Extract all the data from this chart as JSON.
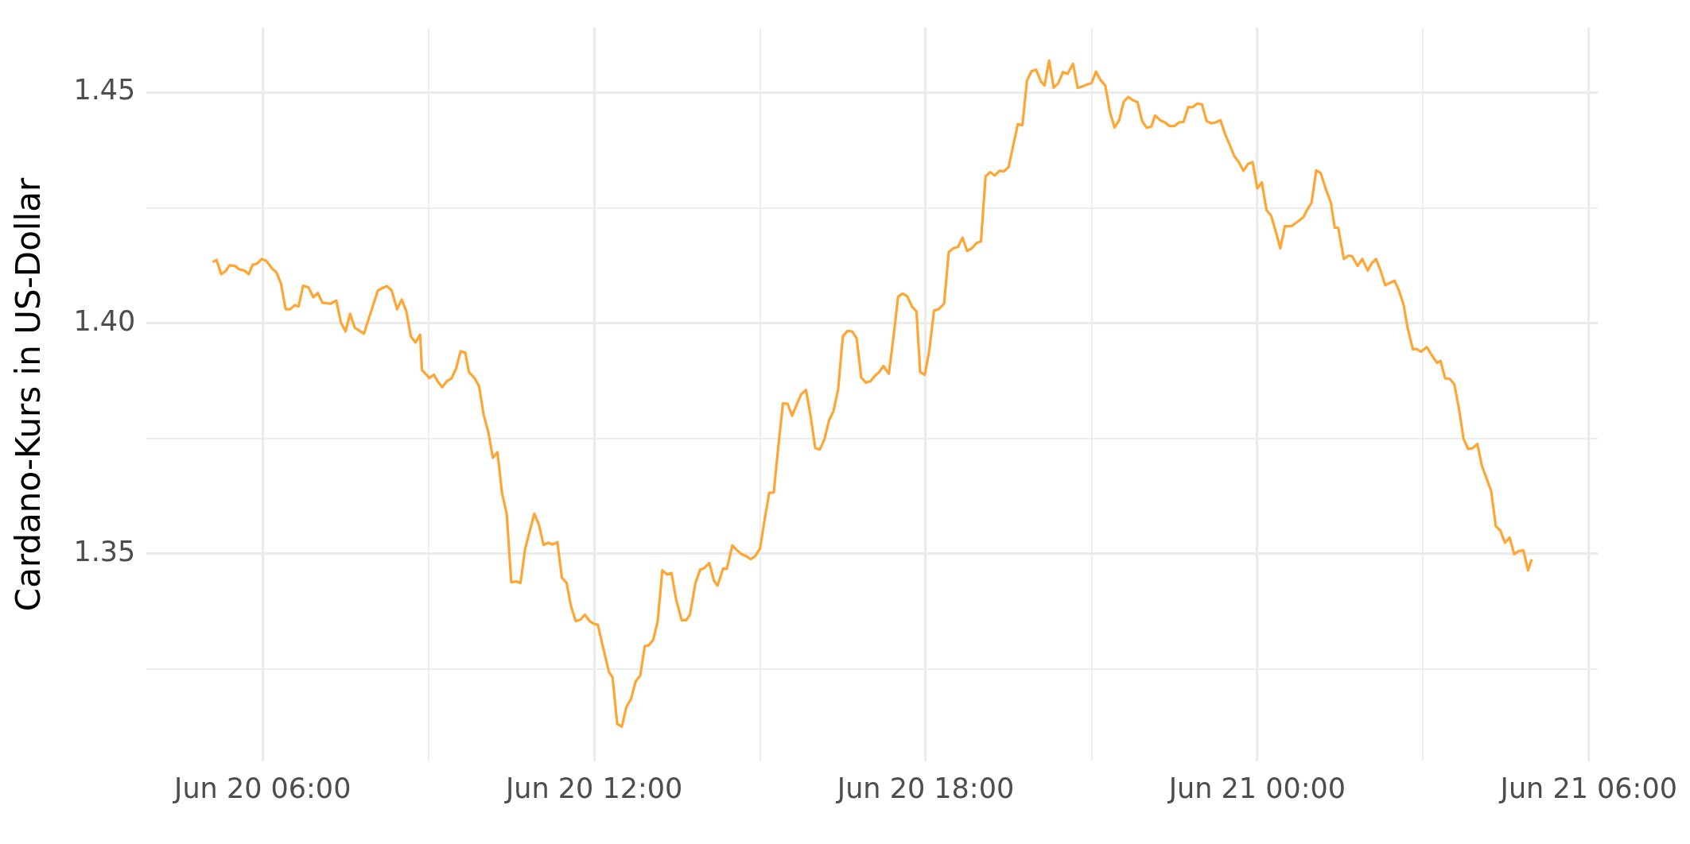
{
  "chart_data": {
    "type": "line",
    "ylabel": "Cardano-Kurs in US-Dollar",
    "color": "#ffa533",
    "x": [
      "--06-20T05:06",
      "--06-20T05:10",
      "--06-20T05:15",
      "--06-20T05:20",
      "--06-20T05:24",
      "--06-20T05:30",
      "--06-20T05:34",
      "--06-20T05:40",
      "--06-20T05:45",
      "--06-20T05:49",
      "--06-20T05:54",
      "--06-20T05:59",
      "--06-20T06:04",
      "--06-20T06:10",
      "--06-20T06:15",
      "--06-20T06:20",
      "--06-20T06:25",
      "--06-20T06:30",
      "--06-20T06:35",
      "--06-20T06:39",
      "--06-20T06:44",
      "--06-20T06:50",
      "--06-20T06:55",
      "--06-20T07:00",
      "--06-20T07:05",
      "--06-20T07:14",
      "--06-20T07:20",
      "--06-20T07:25",
      "--06-20T07:30",
      "--06-20T07:35",
      "--06-20T07:40",
      "--06-20T07:50",
      "--06-20T07:55",
      "--06-20T08:05",
      "--06-20T08:10",
      "--06-20T08:15",
      "--06-20T08:20",
      "--06-20T08:26",
      "--06-20T08:31",
      "--06-20T08:36",
      "--06-20T08:41",
      "--06-20T08:46",
      "--06-20T08:51",
      "--06-20T08:53",
      "--06-20T08:58",
      "--06-20T09:01",
      "--06-20T09:06",
      "--06-20T09:10",
      "--06-20T09:15",
      "--06-20T09:20",
      "--06-20T09:25",
      "--06-20T09:30",
      "--06-20T09:35",
      "--06-20T09:40",
      "--06-20T09:44",
      "--06-20T09:50",
      "--06-20T09:55",
      "--06-20T10:00",
      "--06-20T10:05",
      "--06-20T10:10",
      "--06-20T10:15",
      "--06-20T10:20",
      "--06-20T10:25",
      "--06-20T10:30",
      "--06-20T10:35",
      "--06-20T10:40",
      "--06-20T10:45",
      "--06-20T10:50",
      "--06-20T10:55",
      "--06-20T11:00",
      "--06-20T11:05",
      "--06-20T11:10",
      "--06-20T11:15",
      "--06-20T11:20",
      "--06-20T11:25",
      "--06-20T11:30",
      "--06-20T11:35",
      "--06-20T11:40",
      "--06-20T11:45",
      "--06-20T11:50",
      "--06-20T11:55",
      "--06-20T12:00",
      "--06-20T12:04",
      "--06-20T12:10",
      "--06-20T12:16",
      "--06-20T12:20",
      "--06-20T12:25",
      "--06-20T12:30",
      "--06-20T12:35",
      "--06-20T12:40",
      "--06-20T12:45",
      "--06-20T12:50",
      "--06-20T12:55",
      "--06-20T12:59",
      "--06-20T13:04",
      "--06-20T13:09",
      "--06-20T13:14",
      "--06-20T13:19",
      "--06-20T13:24",
      "--06-20T13:29",
      "--06-20T13:35",
      "--06-20T13:40",
      "--06-20T13:44",
      "--06-20T13:50",
      "--06-20T13:55",
      "--06-20T13:59",
      "--06-20T14:05",
      "--06-20T14:10",
      "--06-20T14:14",
      "--06-20T14:20",
      "--06-20T14:24",
      "--06-20T14:30",
      "--06-20T14:35",
      "--06-20T14:40",
      "--06-20T14:45",
      "--06-20T14:50",
      "--06-20T14:55",
      "--06-20T15:00",
      "--06-20T15:05",
      "--06-20T15:10",
      "--06-20T15:15",
      "--06-20T15:20",
      "--06-20T15:25",
      "--06-20T15:30",
      "--06-20T15:35",
      "--06-20T15:40",
      "--06-20T15:45",
      "--06-20T15:50",
      "--06-20T15:55",
      "--06-20T16:00",
      "--06-20T16:05",
      "--06-20T16:10",
      "--06-20T16:15",
      "--06-20T16:20",
      "--06-20T16:25",
      "--06-20T16:30",
      "--06-20T16:35",
      "--06-20T16:40",
      "--06-20T16:45",
      "--06-20T16:50",
      "--06-20T16:55",
      "--06-20T17:00",
      "--06-20T17:05",
      "--06-20T17:10",
      "--06-20T17:14",
      "--06-20T17:20",
      "--06-20T17:25",
      "--06-20T17:30",
      "--06-20T17:35",
      "--06-20T17:40",
      "--06-20T17:45",
      "--06-20T17:50",
      "--06-20T17:54",
      "--06-20T17:59",
      "--06-20T18:04",
      "--06-20T18:09",
      "--06-20T18:14",
      "--06-20T18:20",
      "--06-20T18:25",
      "--06-20T18:30",
      "--06-20T18:35",
      "--06-20T18:40",
      "--06-20T18:45",
      "--06-20T18:50",
      "--06-20T18:55",
      "--06-20T19:00",
      "--06-20T19:05",
      "--06-20T19:10",
      "--06-20T19:15",
      "--06-20T19:20",
      "--06-20T19:25",
      "--06-20T19:30",
      "--06-20T19:35",
      "--06-20T19:40",
      "--06-20T19:45",
      "--06-20T19:50",
      "--06-20T19:55",
      "--06-20T20:00",
      "--06-20T20:05",
      "--06-20T20:09",
      "--06-20T20:14",
      "--06-20T20:19",
      "--06-20T20:24",
      "--06-20T20:29",
      "--06-20T20:34",
      "--06-20T20:40",
      "--06-20T20:45",
      "--06-20T20:50",
      "--06-20T20:55",
      "--06-20T21:00",
      "--06-20T21:05",
      "--06-20T21:10",
      "--06-20T21:15",
      "--06-20T21:20",
      "--06-20T21:25",
      "--06-20T21:30",
      "--06-20T21:35",
      "--06-20T21:40",
      "--06-20T21:45",
      "--06-20T21:50",
      "--06-20T21:55",
      "--06-20T22:00",
      "--06-20T22:05",
      "--06-20T22:09",
      "--06-20T22:15",
      "--06-20T22:19",
      "--06-20T22:25",
      "--06-20T22:30",
      "--06-20T22:35",
      "--06-20T22:40",
      "--06-20T22:45",
      "--06-20T22:50",
      "--06-20T22:55",
      "--06-20T23:00",
      "--06-20T23:05",
      "--06-20T23:10",
      "--06-20T23:15",
      "--06-20T23:20",
      "--06-20T23:25",
      "--06-20T23:30",
      "--06-20T23:35",
      "--06-20T23:40",
      "--06-20T23:45",
      "--06-20T23:50",
      "--06-20T23:55",
      "--06-21T00:00",
      "--06-21T00:05",
      "--06-21T00:10",
      "--06-21T00:15",
      "--06-21T00:20",
      "--06-21T00:25",
      "--06-21T00:30",
      "--06-21T00:37",
      "--06-21T00:42",
      "--06-21T00:50",
      "--06-21T00:54",
      "--06-21T00:59",
      "--06-21T01:04",
      "--06-21T01:09",
      "--06-21T01:14",
      "--06-21T01:20",
      "--06-21T01:24",
      "--06-21T01:28",
      "--06-21T01:34",
      "--06-21T01:39",
      "--06-21T01:43",
      "--06-21T01:49",
      "--06-21T01:54",
      "--06-21T02:00",
      "--06-21T02:04",
      "--06-21T02:09",
      "--06-21T02:14",
      "--06-21T02:19",
      "--06-21T02:24",
      "--06-21T02:29",
      "--06-21T02:34",
      "--06-21T02:39",
      "--06-21T02:43",
      "--06-21T02:49",
      "--06-21T02:53",
      "--06-21T02:58",
      "--06-21T03:04",
      "--06-21T03:09",
      "--06-21T03:15",
      "--06-21T03:19",
      "--06-21T03:24",
      "--06-21T03:29",
      "--06-21T03:34",
      "--06-21T03:39",
      "--06-21T03:44",
      "--06-21T03:49",
      "--06-21T03:54",
      "--06-21T03:59",
      "--06-21T04:04",
      "--06-21T04:09",
      "--06-21T04:14",
      "--06-21T04:19",
      "--06-21T04:24",
      "--06-21T04:29",
      "--06-21T04:34",
      "--06-21T04:39",
      "--06-21T04:44",
      "--06-21T04:49",
      "--06-21T04:54",
      "--06-21T04:58"
    ],
    "values": [
      1.4132,
      1.4137,
      1.4106,
      1.4113,
      1.4125,
      1.4124,
      1.4117,
      1.4114,
      1.4106,
      1.4126,
      1.4129,
      1.4139,
      1.4135,
      1.4119,
      1.411,
      1.4085,
      1.403,
      1.403,
      1.4039,
      1.4036,
      1.4081,
      1.4077,
      1.4056,
      1.4065,
      1.4044,
      1.4042,
      1.4049,
      1.4001,
      1.3982,
      1.402,
      1.399,
      1.3977,
      1.4008,
      1.407,
      1.4076,
      1.408,
      1.4071,
      1.403,
      1.4051,
      1.4026,
      1.3971,
      1.3958,
      1.3975,
      1.3898,
      1.3888,
      1.3881,
      1.3888,
      1.3874,
      1.3861,
      1.3874,
      1.388,
      1.3901,
      1.3939,
      1.3936,
      1.3894,
      1.3881,
      1.3863,
      1.3801,
      1.3764,
      1.3708,
      1.372,
      1.3631,
      1.3587,
      1.3438,
      1.344,
      1.3437,
      1.351,
      1.3549,
      1.3587,
      1.3563,
      1.3519,
      1.3524,
      1.352,
      1.3525,
      1.3448,
      1.3437,
      1.3385,
      1.3354,
      1.3357,
      1.3368,
      1.3354,
      1.3348,
      1.3346,
      1.3294,
      1.3244,
      1.3232,
      1.3131,
      1.3125,
      1.3168,
      1.3185,
      1.3223,
      1.3236,
      1.33,
      1.3301,
      1.3313,
      1.3354,
      1.3464,
      1.3455,
      1.3458,
      1.3401,
      1.3356,
      1.3356,
      1.3368,
      1.3437,
      1.3465,
      1.3468,
      1.348,
      1.3442,
      1.3431,
      1.3468,
      1.3467,
      1.3518,
      1.3508,
      1.3499,
      1.3495,
      1.3488,
      1.3495,
      1.3511,
      1.3573,
      1.3632,
      1.3633,
      1.3733,
      1.3826,
      1.3825,
      1.3799,
      1.3824,
      1.3846,
      1.3855,
      1.3799,
      1.3729,
      1.3726,
      1.3748,
      1.3789,
      1.381,
      1.3858,
      1.3971,
      1.3983,
      1.3982,
      1.3967,
      1.3882,
      1.3871,
      1.3874,
      1.3886,
      1.3895,
      1.3907,
      1.389,
      1.397,
      1.4057,
      1.4064,
      1.4058,
      1.4036,
      1.4025,
      1.3894,
      1.3888,
      1.3942,
      1.4027,
      1.403,
      1.4042,
      1.4154,
      1.4162,
      1.4165,
      1.4185,
      1.4156,
      1.4162,
      1.4173,
      1.4177,
      1.4318,
      1.4327,
      1.432,
      1.433,
      1.4329,
      1.4338,
      1.4385,
      1.4431,
      1.4429,
      1.4526,
      1.4546,
      1.4549,
      1.4524,
      1.4515,
      1.4569,
      1.451,
      1.452,
      1.4544,
      1.454,
      1.4562,
      1.451,
      1.4513,
      1.4517,
      1.452,
      1.4545,
      1.4526,
      1.4515,
      1.4458,
      1.4424,
      1.4439,
      1.448,
      1.449,
      1.4483,
      1.4479,
      1.4438,
      1.4423,
      1.4426,
      1.445,
      1.4439,
      1.4436,
      1.4427,
      1.4427,
      1.4435,
      1.4436,
      1.4468,
      1.4468,
      1.4476,
      1.4474,
      1.4438,
      1.4433,
      1.4435,
      1.444,
      1.441,
      1.4387,
      1.4362,
      1.4349,
      1.433,
      1.4345,
      1.4349,
      1.4292,
      1.4305,
      1.4245,
      1.4233,
      1.4199,
      1.4162,
      1.421,
      1.421,
      1.4217,
      1.4229,
      1.4245,
      1.4261,
      1.4331,
      1.4325,
      1.4293,
      1.4261,
      1.4207,
      1.4206,
      1.4139,
      1.4146,
      1.4145,
      1.4124,
      1.4139,
      1.4114,
      1.4129,
      1.4139,
      1.4113,
      1.4082,
      1.4087,
      1.4092,
      1.407,
      1.4039,
      1.3992,
      1.3943,
      1.3944,
      1.3938,
      1.3948,
      1.3932,
      1.3914,
      1.3918,
      1.388,
      1.3879,
      1.3867,
      1.3815,
      1.3749,
      1.3727,
      1.3729,
      1.3738,
      1.369,
      1.3663,
      1.3636,
      1.356,
      1.355,
      1.3524,
      1.3535,
      1.3499,
      1.3506,
      1.3507,
      1.3464,
      1.3488
    ],
    "xlim": [
      "--06-20T03:54",
      "--06-21T06:10"
    ],
    "ylim": [
      1.305,
      1.464
    ],
    "xticks": [
      {
        "value": "--06-20T06:00",
        "label": "Jun 20 06:00"
      },
      {
        "value": "--06-20T09:00",
        "label": null
      },
      {
        "value": "--06-20T12:00",
        "label": "Jun 20 12:00"
      },
      {
        "value": "--06-20T15:00",
        "label": null
      },
      {
        "value": "--06-20T18:00",
        "label": "Jun 20 18:00"
      },
      {
        "value": "--06-20T21:00",
        "label": null
      },
      {
        "value": "--06-21T00:00",
        "label": "Jun 21 00:00"
      },
      {
        "value": "--06-21T03:00",
        "label": null
      },
      {
        "value": "--06-21T06:00",
        "label": "Jun 21 06:00"
      }
    ],
    "yticks": [
      {
        "value": 1.325,
        "label": null
      },
      1.35,
      {
        "value": 1.375,
        "label": null
      },
      {
        "value": 1.4,
        "label": "1.40"
      },
      {
        "value": 1.425,
        "label": null
      },
      1.45
    ],
    "grid": true
  }
}
